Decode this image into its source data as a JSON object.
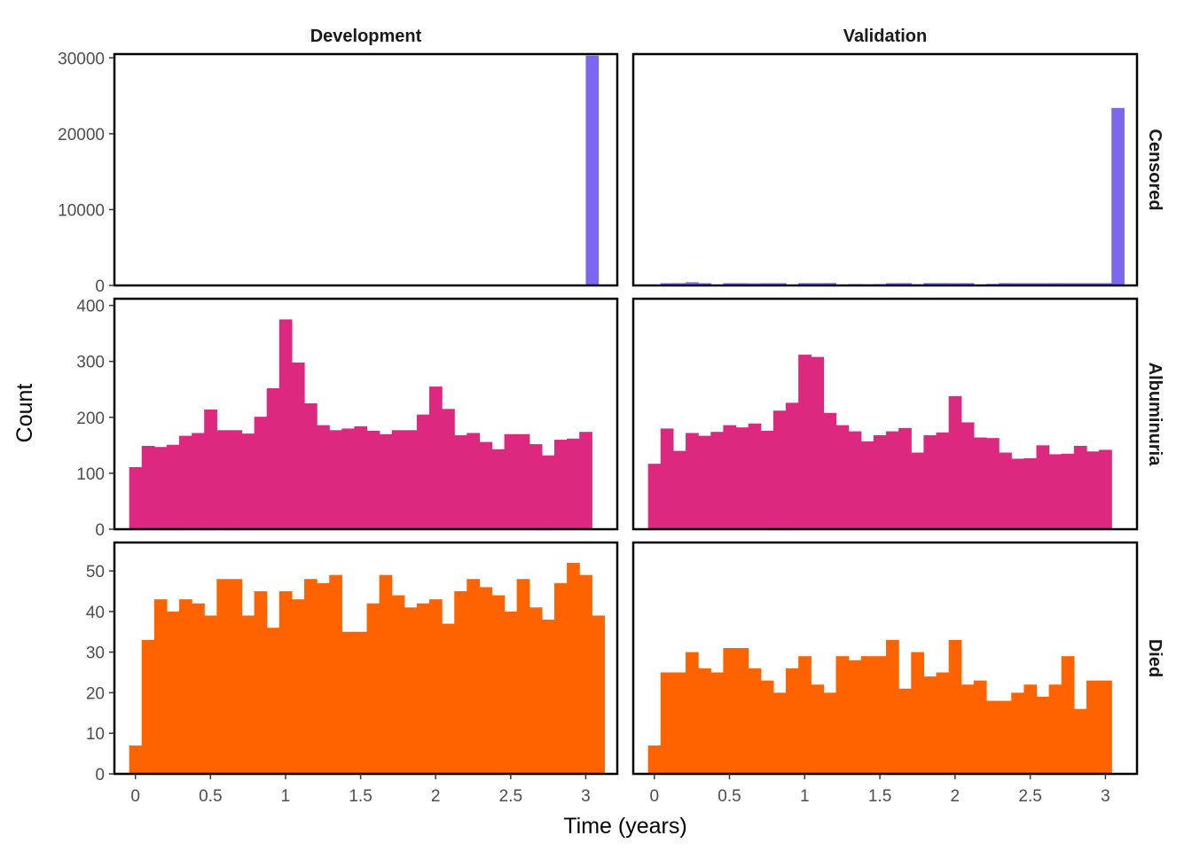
{
  "chart_data": {
    "type": "bar",
    "xlabel": "Time (years)",
    "ylabel": "Count",
    "columns": [
      "Development",
      "Validation"
    ],
    "rows": [
      "Censored",
      "Albuminuria",
      "Died"
    ],
    "x_ticks": [
      0,
      0.5,
      1,
      1.5,
      2,
      2.5,
      3
    ],
    "x_tick_labels": [
      "0",
      "0.5",
      "1",
      "1.5",
      "2",
      "2.5",
      "3"
    ],
    "xlim": [
      -0.14,
      3.21
    ],
    "bin_width": 0.0833,
    "grid": false,
    "legend": "none",
    "colors": {
      "Censored": "#7B68EE",
      "Albuminuria": "#DD2880",
      "Died": "#FF6300"
    },
    "panels": [
      {
        "row": "Censored",
        "column": "Development",
        "ylim": [
          0,
          30500
        ],
        "y_ticks": [
          0,
          10000,
          20000,
          30000
        ],
        "y_tick_labels": [
          "0",
          "10000",
          "20000",
          "30000"
        ],
        "bin_start": 3.0,
        "values": [
          30300
        ]
      },
      {
        "row": "Censored",
        "column": "Validation",
        "ylim": [
          0,
          30500
        ],
        "y_ticks": [
          0,
          10000,
          20000,
          30000
        ],
        "y_tick_labels": [
          "0",
          "10000",
          "20000",
          "30000"
        ],
        "bin_start": -0.0417,
        "values": [
          0,
          300,
          310,
          420,
          300,
          0,
          300,
          300,
          280,
          300,
          300,
          100,
          310,
          310,
          320,
          100,
          180,
          150,
          180,
          300,
          310,
          160,
          310,
          310,
          300,
          310,
          120,
          200,
          310,
          300,
          300,
          300,
          310,
          300,
          300,
          300,
          300,
          23400
        ]
      },
      {
        "row": "Albuminuria",
        "column": "Development",
        "ylim": [
          0,
          412
        ],
        "y_ticks": [
          0,
          100,
          200,
          300,
          400
        ],
        "y_tick_labels": [
          "0",
          "100",
          "200",
          "300",
          "400"
        ],
        "bin_start": -0.0417,
        "values": [
          111,
          149,
          147,
          151,
          167,
          172,
          214,
          177,
          177,
          171,
          201,
          252,
          375,
          298,
          225,
          186,
          177,
          180,
          184,
          176,
          170,
          177,
          177,
          205,
          255,
          215,
          168,
          172,
          156,
          143,
          170,
          170,
          152,
          132,
          160,
          162,
          174
        ]
      },
      {
        "row": "Albuminuria",
        "column": "Validation",
        "ylim": [
          0,
          412
        ],
        "y_ticks": [
          0,
          100,
          200,
          300,
          400
        ],
        "y_tick_labels": [
          "0",
          "100",
          "200",
          "300",
          "400"
        ],
        "bin_start": -0.0417,
        "values": [
          117,
          180,
          140,
          172,
          167,
          174,
          186,
          182,
          189,
          176,
          212,
          226,
          312,
          308,
          208,
          186,
          175,
          157,
          168,
          175,
          181,
          137,
          168,
          173,
          238,
          191,
          164,
          163,
          137,
          126,
          127,
          150,
          134,
          135,
          149,
          139,
          142
        ]
      },
      {
        "row": "Died",
        "column": "Development",
        "ylim": [
          0,
          57
        ],
        "y_ticks": [
          0,
          10,
          20,
          30,
          40,
          50
        ],
        "y_tick_labels": [
          "0",
          "10",
          "20",
          "30",
          "40",
          "50"
        ],
        "bin_start": -0.0417,
        "values": [
          7,
          33,
          43,
          40,
          43,
          42,
          39,
          48,
          48,
          39,
          45,
          36,
          45,
          43,
          48,
          47,
          49,
          35,
          35,
          42,
          49,
          44,
          41,
          42,
          43,
          37,
          45,
          48,
          46,
          44,
          40,
          48,
          41,
          38,
          47,
          52,
          49,
          39
        ]
      },
      {
        "row": "Died",
        "column": "Validation",
        "ylim": [
          0,
          57
        ],
        "y_ticks": [
          0,
          10,
          20,
          30,
          40,
          50
        ],
        "y_tick_labels": [
          "0",
          "10",
          "20",
          "30",
          "40",
          "50"
        ],
        "bin_start": -0.0417,
        "values": [
          7,
          25,
          25,
          30,
          26,
          25,
          31,
          31,
          26,
          23,
          20,
          26,
          29,
          22,
          20,
          29,
          28,
          29,
          29,
          33,
          21,
          30,
          24,
          25,
          33,
          22,
          23,
          18,
          18,
          20,
          22,
          19,
          22,
          29,
          16,
          23,
          23
        ]
      }
    ]
  }
}
